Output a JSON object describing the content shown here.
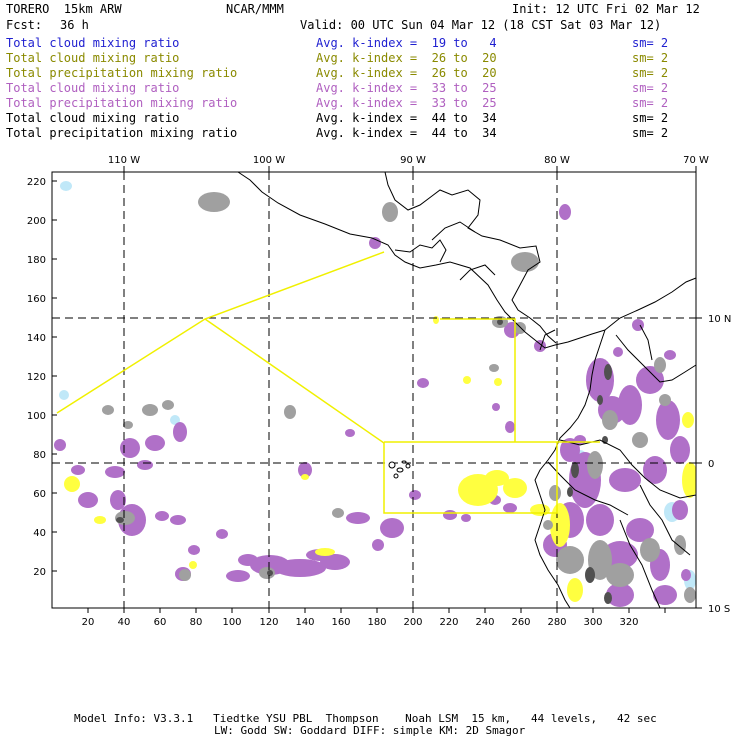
{
  "header": {
    "model": "TORERO  15km ARW",
    "org": "NCAR/MMM",
    "init": "Init: 12 UTC Fri 02 Mar 12",
    "fcst_label": "Fcst:",
    "fcst_value": "36 h",
    "valid": "Valid: 00 UTC Sun 04 Mar 12 (18 CST Sat 03 Mar 12)"
  },
  "legend_rows": [
    {
      "field": "Total cloud mixing ratio",
      "index": "Avg. k-index =  19 to   4",
      "sm": "sm= 2",
      "color": "#1f1fd0"
    },
    {
      "field": "Total cloud mixing ratio",
      "index": "Avg. k-index =  26 to  20",
      "sm": "sm= 2",
      "color": "#8a8a00"
    },
    {
      "field": "Total precipitation mixing ratio",
      "index": "Avg. k-index =  26 to  20",
      "sm": "sm= 2",
      "color": "#8a8a00"
    },
    {
      "field": "Total cloud mixing ratio",
      "index": "Avg. k-index =  33 to  25",
      "sm": "sm= 2",
      "color": "#b060c0"
    },
    {
      "field": "Total precipitation mixing ratio",
      "index": "Avg. k-index =  33 to  25",
      "sm": "sm= 2",
      "color": "#b060c0"
    },
    {
      "field": "Total cloud mixing ratio",
      "index": "Avg. k-index =  44 to  34",
      "sm": "sm= 2",
      "color": "#000000"
    },
    {
      "field": "Total precipitation mixing ratio",
      "index": "Avg. k-index =  44 to  34",
      "sm": "sm= 2",
      "color": "#000000"
    }
  ],
  "axes": {
    "top_lon_labels": [
      "110 W",
      "100 W",
      "90 W",
      "80 W",
      "70 W"
    ],
    "right_lat_labels": [
      "10 N",
      "0",
      "10 S"
    ],
    "left_ticks": [
      "220",
      "200",
      "180",
      "160",
      "140",
      "120",
      "100",
      "80",
      "60",
      "40",
      "20"
    ],
    "bottom_ticks": [
      "20",
      "40",
      "60",
      "80",
      "100",
      "120",
      "140",
      "160",
      "180",
      "200",
      "220",
      "240",
      "260",
      "280",
      "300",
      "320"
    ]
  },
  "footer": {
    "line1": "Model Info: V3.3.1   Tiedtke YSU PBL  Thompson    Noah LSM  15 km,   44 levels,   42 sec",
    "line2": "LW: Godd SW: Goddard DIFF: simple KM: 2D Smagor"
  },
  "colors": {
    "purple": "#b070c8",
    "yellow": "#ffff40",
    "gray": "#a0a0a0",
    "light_blue": "#c0e8f8",
    "dark_gray": "#505050",
    "boundary_yellow": "#f0f000"
  }
}
